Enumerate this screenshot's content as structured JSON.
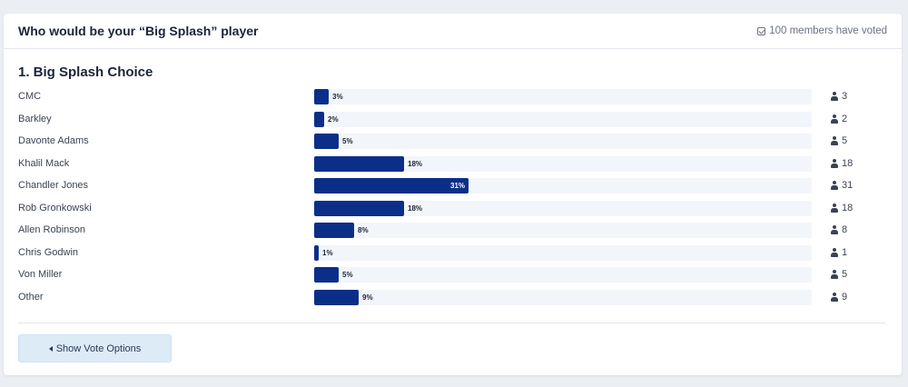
{
  "poll": {
    "title": "Who would be your “Big Splash” player",
    "voted_text": "100 members have voted",
    "question_title": "1. Big Splash Choice",
    "show_button_label": "Show Vote Options"
  },
  "options": [
    {
      "label": "CMC",
      "percent": 3,
      "percent_label": "3%",
      "count": "3"
    },
    {
      "label": "Barkley",
      "percent": 2,
      "percent_label": "2%",
      "count": "2"
    },
    {
      "label": "Davonte Adams",
      "percent": 5,
      "percent_label": "5%",
      "count": "5"
    },
    {
      "label": "Khalil Mack",
      "percent": 18,
      "percent_label": "18%",
      "count": "18"
    },
    {
      "label": "Chandler Jones",
      "percent": 31,
      "percent_label": "31%",
      "count": "31"
    },
    {
      "label": "Rob Gronkowski",
      "percent": 18,
      "percent_label": "18%",
      "count": "18"
    },
    {
      "label": "Allen Robinson",
      "percent": 8,
      "percent_label": "8%",
      "count": "8"
    },
    {
      "label": "Chris Godwin",
      "percent": 1,
      "percent_label": "1%",
      "count": "1"
    },
    {
      "label": "Von Miller",
      "percent": 5,
      "percent_label": "5%",
      "count": "5"
    },
    {
      "label": "Other",
      "percent": 9,
      "percent_label": "9%",
      "count": "9"
    }
  ],
  "colors": {
    "bar": "#0b2f89",
    "track": "#f2f5f9",
    "button_bg": "#ddebf7"
  },
  "icons": {
    "voted": "check-square-icon",
    "count": "user-icon",
    "button": "caret-left-icon"
  }
}
